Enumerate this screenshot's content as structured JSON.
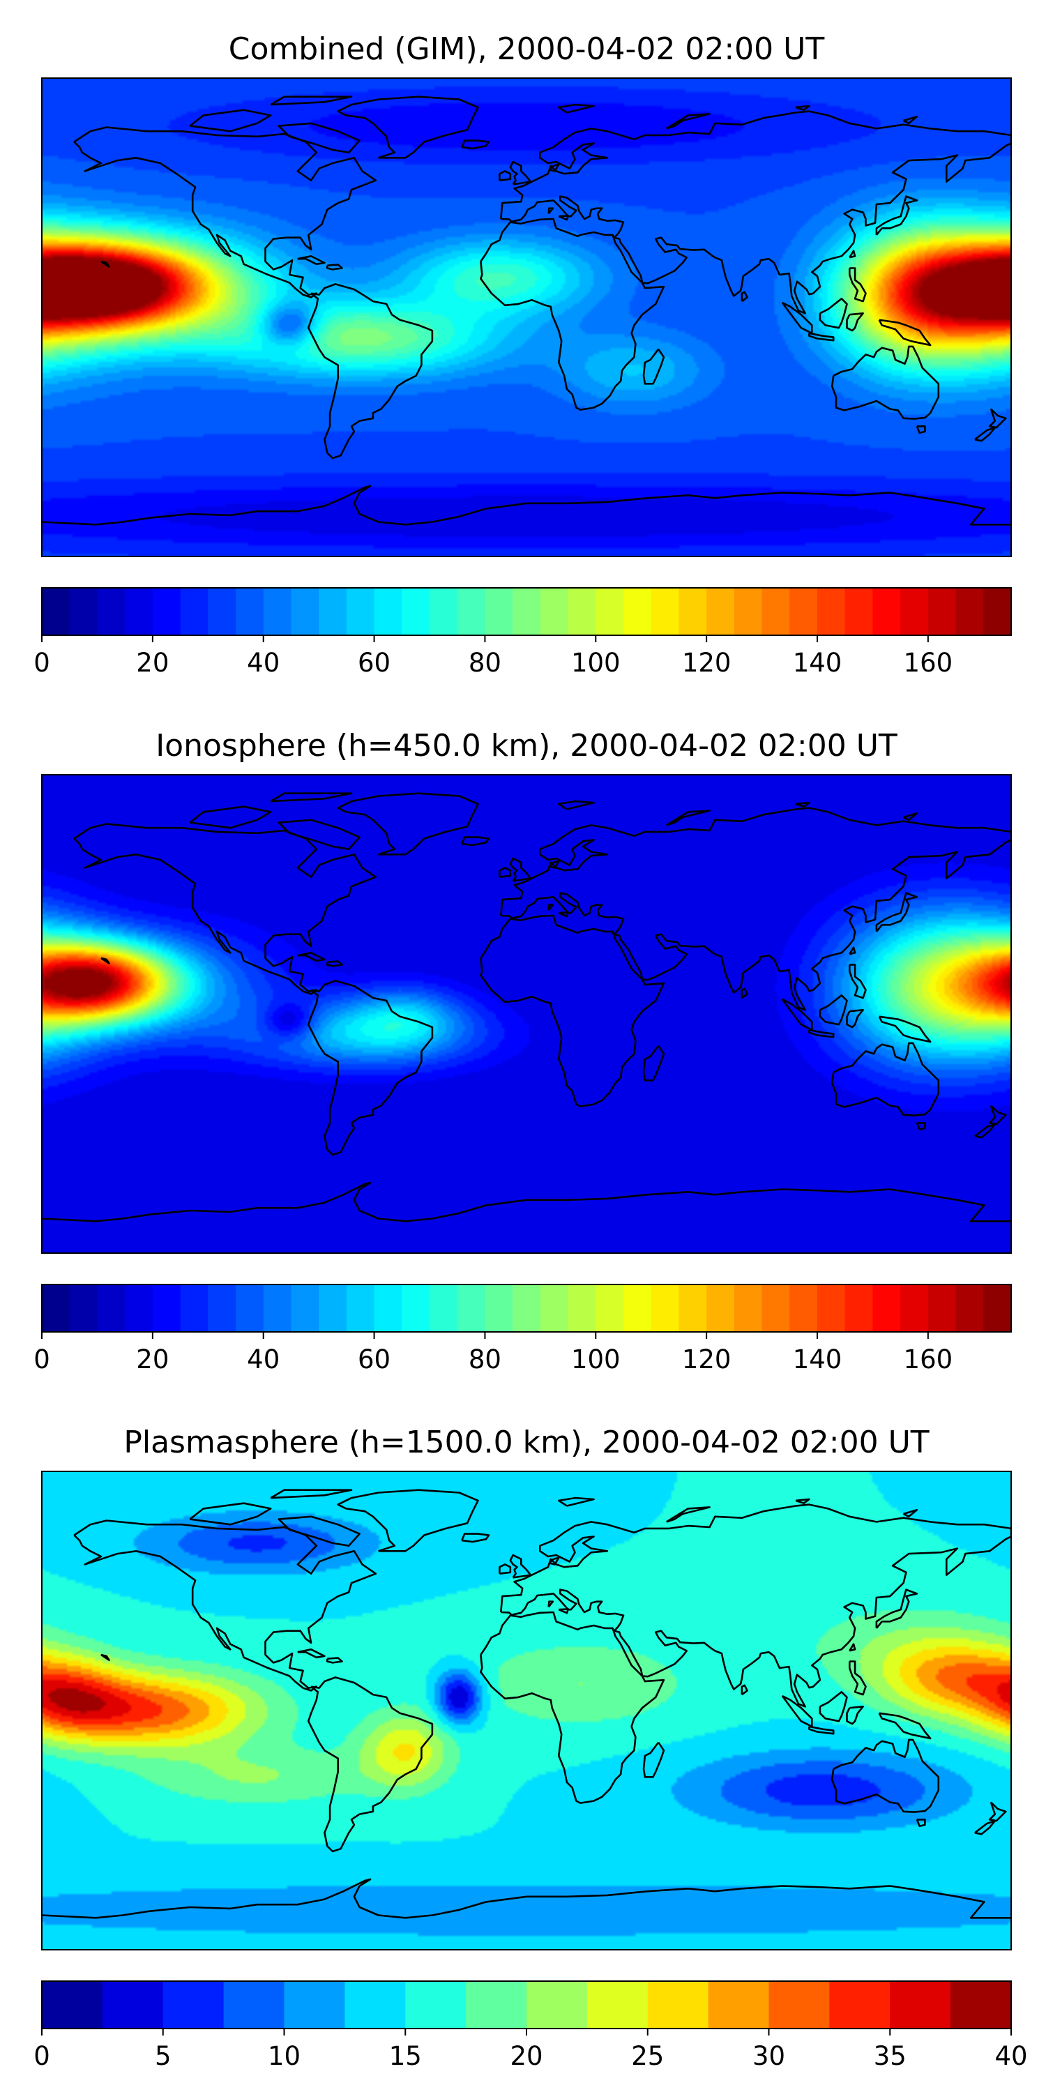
{
  "panels": [
    {
      "title": "Combined (GIM), 2000-04-02 02:00 UT",
      "colorbar": {
        "vmin": 0,
        "vmax": 175,
        "step": 5,
        "ticks": [
          "0",
          "20",
          "40",
          "60",
          "80",
          "100",
          "120",
          "140",
          "160"
        ],
        "tick_values": [
          0,
          20,
          40,
          60,
          80,
          100,
          120,
          140,
          160
        ]
      },
      "background_level": 35,
      "features": [
        {
          "lon": -160,
          "lat": 12,
          "amp": 130,
          "sx": 28,
          "sy": 11
        },
        {
          "lon": -135,
          "lat": 10,
          "amp": 40,
          "sx": 35,
          "sy": 16
        },
        {
          "lon": 145,
          "lat": 8,
          "amp": 85,
          "sx": 22,
          "sy": 18
        },
        {
          "lon": 175,
          "lat": 8,
          "amp": 55,
          "sx": 25,
          "sy": 18
        },
        {
          "lon": -60,
          "lat": -8,
          "amp": 50,
          "sx": 35,
          "sy": 10
        },
        {
          "lon": -10,
          "lat": 15,
          "amp": 40,
          "sx": 25,
          "sy": 10
        },
        {
          "lon": 40,
          "lat": -20,
          "amp": 20,
          "sx": 20,
          "sy": 10
        },
        {
          "lon": -88,
          "lat": -3,
          "amp": -40,
          "sx": 8,
          "sy": 6
        },
        {
          "lon": 0,
          "lat": 72,
          "amp": -15,
          "sx": 90,
          "sy": 10
        },
        {
          "lon": 0,
          "lat": -75,
          "amp": -20,
          "sx": 180,
          "sy": 10
        }
      ]
    },
    {
      "title": "Ionosphere  (h=450.0 km), 2000-04-02 02:00 UT",
      "colorbar": {
        "vmin": 0,
        "vmax": 175,
        "step": 5,
        "ticks": [
          "0",
          "20",
          "40",
          "60",
          "80",
          "100",
          "120",
          "140",
          "160"
        ],
        "tick_values": [
          0,
          20,
          40,
          60,
          80,
          100,
          120,
          140,
          160
        ]
      },
      "background_level": 15,
      "features": [
        {
          "lon": -160,
          "lat": 12,
          "amp": 115,
          "sx": 20,
          "sy": 10
        },
        {
          "lon": -135,
          "lat": 10,
          "amp": 30,
          "sx": 30,
          "sy": 15
        },
        {
          "lon": 150,
          "lat": 10,
          "amp": 70,
          "sx": 25,
          "sy": 20
        },
        {
          "lon": 178,
          "lat": 10,
          "amp": 40,
          "sx": 20,
          "sy": 18
        },
        {
          "lon": -60,
          "lat": -8,
          "amp": 40,
          "sx": 30,
          "sy": 9
        },
        {
          "lon": -45,
          "lat": 0,
          "amp": 25,
          "sx": 15,
          "sy": 8
        },
        {
          "lon": -88,
          "lat": -3,
          "amp": -25,
          "sx": 7,
          "sy": 5
        }
      ]
    },
    {
      "title": "Plasmasphere (h=1500.0 km), 2000-04-02 02:00 UT",
      "colorbar": {
        "vmin": 0,
        "vmax": 40,
        "step": 2.5,
        "ticks": [
          "0",
          "5",
          "10",
          "15",
          "20",
          "25",
          "30",
          "35",
          "40"
        ],
        "tick_values": [
          0,
          5,
          10,
          15,
          20,
          25,
          30,
          35,
          40
        ]
      },
      "background_level": 15,
      "features": [
        {
          "lon": -140,
          "lat": 0,
          "amp": 17,
          "sx": 28,
          "sy": 10
        },
        {
          "lon": -170,
          "lat": 5,
          "amp": 12,
          "sx": 15,
          "sy": 10
        },
        {
          "lon": 160,
          "lat": 12,
          "amp": 13,
          "sx": 20,
          "sy": 10
        },
        {
          "lon": -45,
          "lat": -15,
          "amp": 10,
          "sx": 12,
          "sy": 10
        },
        {
          "lon": -25,
          "lat": 5,
          "amp": -14,
          "sx": 6,
          "sy": 7
        },
        {
          "lon": -100,
          "lat": 63,
          "amp": -8,
          "sx": 30,
          "sy": 8
        },
        {
          "lon": 110,
          "lat": -30,
          "amp": -9,
          "sx": 35,
          "sy": 10
        },
        {
          "lon": 0,
          "lat": -75,
          "amp": -5,
          "sx": 180,
          "sy": 8
        },
        {
          "lon": -100,
          "lat": -25,
          "amp": 5,
          "sx": 30,
          "sy": 8
        },
        {
          "lon": 20,
          "lat": 10,
          "amp": 5,
          "sx": 30,
          "sy": 12
        },
        {
          "lon": 140,
          "lat": 25,
          "amp": 4,
          "sx": 30,
          "sy": 12
        }
      ]
    }
  ],
  "colors": {
    "border": "#000000",
    "coast": "#000000",
    "map_style": "filled-contour jet colormap"
  },
  "map_type": "equirectangular world map with coastlines"
}
